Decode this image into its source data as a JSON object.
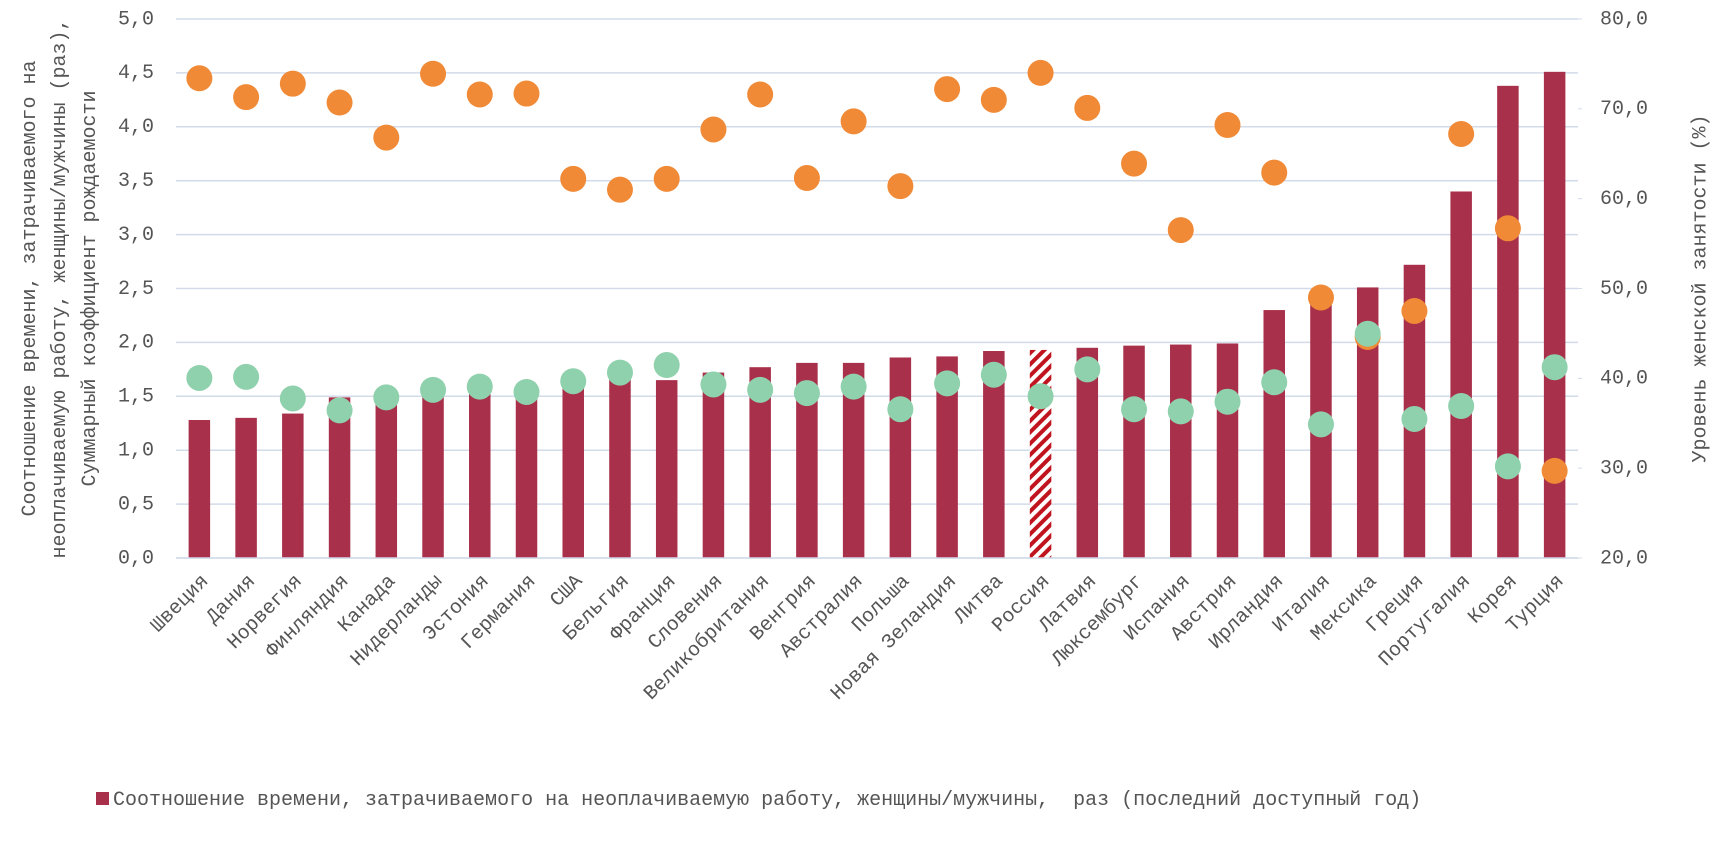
{
  "chart_data": {
    "type": "bar",
    "categories": [
      "Швеция",
      "Дания",
      "Норвегия",
      "Финляндия",
      "Канада",
      "Нидерланды",
      "Эстония",
      "Германия",
      "США",
      "Бельгия",
      "Франция",
      "Словения",
      "Великобритания",
      "Венгрия",
      "Австралия",
      "Польша",
      "Новая Зеландия",
      "Литва",
      "Россия",
      "Латвия",
      "Люксембург",
      "Испания",
      "Австрия",
      "Ирландия",
      "Италия",
      "Мексика",
      "Греция",
      "Португалия",
      "Корея",
      "Турция"
    ],
    "series": [
      {
        "name": "Соотношение времени, затрачиваемого на неоплачиваемую работу, женщины/мужчины,  раз (последний доступный год)",
        "type": "bar",
        "color": "#a8304a",
        "values": [
          1.28,
          1.3,
          1.34,
          1.49,
          1.5,
          1.53,
          1.55,
          1.56,
          1.61,
          1.68,
          1.65,
          1.72,
          1.77,
          1.81,
          1.81,
          1.86,
          1.87,
          1.92,
          1.93,
          1.95,
          1.97,
          1.98,
          1.99,
          2.3,
          2.4,
          2.51,
          2.72,
          3.4,
          4.38,
          4.51
        ],
        "hatched_index": 18
      },
      {
        "type": "scatter",
        "color": "#f08a36",
        "axis": "y2",
        "values": [
          73.4,
          71.3,
          72.8,
          70.7,
          66.8,
          73.9,
          71.6,
          71.7,
          62.2,
          61.0,
          62.2,
          67.7,
          71.6,
          62.3,
          68.6,
          61.4,
          72.2,
          71.0,
          74.0,
          70.1,
          63.9,
          56.5,
          68.2,
          62.9,
          49.0,
          44.6,
          47.5,
          67.2,
          56.7,
          29.7
        ]
      },
      {
        "type": "scatter",
        "color": "#8fd1ad",
        "values": [
          1.67,
          1.68,
          1.48,
          1.37,
          1.49,
          1.56,
          1.59,
          1.54,
          1.64,
          1.72,
          1.79,
          1.61,
          1.56,
          1.53,
          1.59,
          1.38,
          1.62,
          1.7,
          1.5,
          1.75,
          1.38,
          1.36,
          1.45,
          1.63,
          1.24,
          2.08,
          1.29,
          1.41,
          0.85,
          1.77
        ]
      }
    ],
    "y_label": [
      "Соотношение времени, затрачиваемого на",
      "неоплачиваемую работу, женщины/мужчины (раз),",
      "Суммарный коэффициент рождаемости"
    ],
    "y2_label": "Уровень женской занятости (%)",
    "ylim": [
      0,
      5
    ],
    "yticks": [
      {
        "value": 0,
        "label": "0,0"
      },
      {
        "value": 0.5,
        "label": "0,5"
      },
      {
        "value": 1,
        "label": "1,0"
      },
      {
        "value": 1.5,
        "label": "1,5"
      },
      {
        "value": 2,
        "label": "2,0"
      },
      {
        "value": 2.5,
        "label": "2,5"
      },
      {
        "value": 3,
        "label": "3,0"
      },
      {
        "value": 3.5,
        "label": "3,5"
      },
      {
        "value": 4,
        "label": "4,0"
      },
      {
        "value": 4.5,
        "label": "4,5"
      },
      {
        "value": 5,
        "label": "5,0"
      }
    ],
    "y2lim": [
      20,
      80
    ],
    "y2ticks": [
      {
        "value": 20,
        "label": "20,0"
      },
      {
        "value": 30,
        "label": "30,0"
      },
      {
        "value": 40,
        "label": "40,0"
      },
      {
        "value": 50,
        "label": "50,0"
      },
      {
        "value": 60,
        "label": "60,0"
      },
      {
        "value": 70,
        "label": "70,0"
      },
      {
        "value": 80,
        "label": "80,0"
      }
    ],
    "grid": true,
    "legend": "bottom"
  }
}
